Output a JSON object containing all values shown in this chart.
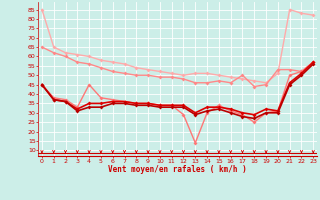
{
  "background_color": "#cceee8",
  "grid_color": "#ffffff",
  "xlabel": "Vent moyen/en rafales ( km/h )",
  "xlabel_color": "#cc0000",
  "tick_color": "#cc0000",
  "x_ticks": [
    0,
    1,
    2,
    3,
    4,
    5,
    6,
    7,
    8,
    9,
    10,
    11,
    12,
    13,
    14,
    15,
    16,
    17,
    18,
    19,
    20,
    21,
    22,
    23
  ],
  "y_ticks": [
    10,
    15,
    20,
    25,
    30,
    35,
    40,
    45,
    50,
    55,
    60,
    65,
    70,
    75,
    80,
    85
  ],
  "ylim": [
    7,
    89
  ],
  "xlim": [
    -0.3,
    23.3
  ],
  "series": [
    {
      "color": "#ffaaaa",
      "linewidth": 1.0,
      "marker": "D",
      "markersize": 2.0,
      "y": [
        85,
        65,
        62,
        61,
        60,
        58,
        57,
        56,
        54,
        53,
        52,
        51,
        50,
        51,
        51,
        50,
        49,
        48,
        47,
        46,
        51,
        85,
        83,
        82
      ]
    },
    {
      "color": "#ff8888",
      "linewidth": 1.0,
      "marker": "D",
      "markersize": 2.0,
      "y": [
        65,
        62,
        60,
        57,
        56,
        54,
        52,
        51,
        50,
        50,
        49,
        49,
        48,
        46,
        46,
        47,
        46,
        50,
        44,
        45,
        53,
        53,
        52,
        57
      ]
    },
    {
      "color": "#ff7777",
      "linewidth": 1.0,
      "marker": "D",
      "markersize": 2.0,
      "y": [
        45,
        38,
        37,
        33,
        45,
        38,
        37,
        36,
        35,
        35,
        34,
        34,
        29,
        14,
        30,
        34,
        31,
        29,
        25,
        30,
        31,
        50,
        52,
        57
      ]
    },
    {
      "color": "#dd0000",
      "linewidth": 1.2,
      "marker": "D",
      "markersize": 2.0,
      "y": [
        45,
        37,
        36,
        32,
        35,
        35,
        36,
        36,
        35,
        35,
        34,
        34,
        34,
        30,
        33,
        33,
        32,
        30,
        29,
        32,
        31,
        46,
        51,
        57
      ]
    },
    {
      "color": "#bb0000",
      "linewidth": 1.2,
      "marker": "D",
      "markersize": 2.0,
      "y": [
        45,
        37,
        36,
        31,
        33,
        33,
        35,
        35,
        34,
        34,
        33,
        33,
        33,
        29,
        31,
        32,
        30,
        28,
        27,
        30,
        30,
        45,
        50,
        56
      ]
    }
  ]
}
